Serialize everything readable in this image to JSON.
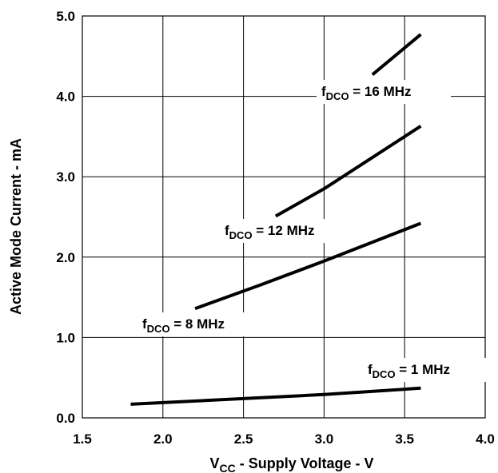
{
  "chart_data": {
    "type": "line",
    "title": "",
    "xlabel": {
      "main": "V",
      "sub": "CC",
      "rest": " - Supply Voltage - V"
    },
    "ylabel": "Active Mode Current - mA",
    "xlim": [
      1.5,
      4.0
    ],
    "ylim": [
      0.0,
      5.0
    ],
    "x_ticks": [
      1.5,
      2.0,
      2.5,
      3.0,
      3.5,
      4.0
    ],
    "x_tick_labels": [
      "1.5",
      "2.0",
      "2.5",
      "3.0",
      "3.5",
      "4.0"
    ],
    "y_ticks": [
      0.0,
      1.0,
      2.0,
      3.0,
      4.0,
      5.0
    ],
    "y_tick_labels": [
      "0.0",
      "1.0",
      "2.0",
      "3.0",
      "4.0",
      "5.0"
    ],
    "grid": true,
    "series": [
      {
        "name": "fDCO = 1 MHz",
        "label": {
          "f": "f",
          "sub": "DCO",
          "rest": " = 1 MHz"
        },
        "x": [
          1.8,
          3.0,
          3.6
        ],
        "y": [
          0.17,
          0.29,
          0.37
        ]
      },
      {
        "name": "fDCO = 8 MHz",
        "label": {
          "f": "f",
          "sub": "DCO",
          "rest": " = 8 MHz"
        },
        "x": [
          2.2,
          2.6,
          3.0,
          3.6
        ],
        "y": [
          1.36,
          1.65,
          1.95,
          2.42
        ]
      },
      {
        "name": "fDCO = 12 MHz",
        "label": {
          "f": "f",
          "sub": "DCO",
          "rest": " = 12 MHz"
        },
        "x": [
          2.7,
          3.0,
          3.6
        ],
        "y": [
          2.51,
          2.85,
          3.63
        ]
      },
      {
        "name": "fDCO = 16 MHz",
        "label": {
          "f": "f",
          "sub": "DCO",
          "rest": " = 16 MHz"
        },
        "x": [
          3.3,
          3.6
        ],
        "y": [
          4.27,
          4.77
        ]
      }
    ]
  }
}
